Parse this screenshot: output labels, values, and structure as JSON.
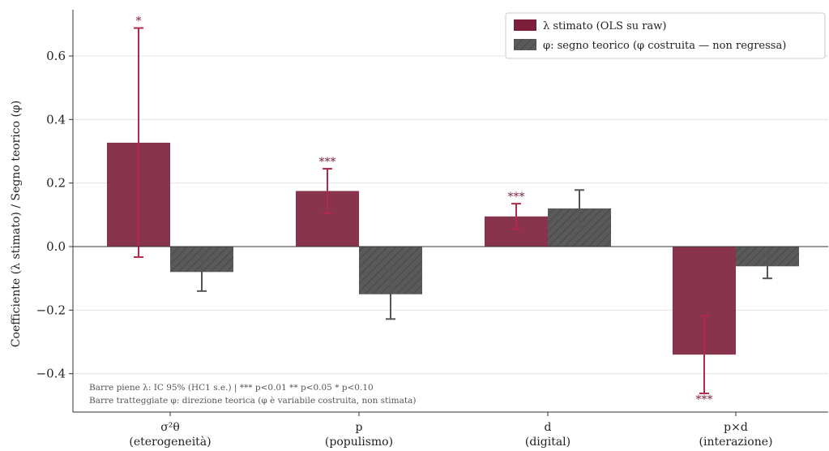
{
  "chart_data": {
    "type": "bar",
    "title": "",
    "ylabel": "Coefficiente (λ stimato) / Segno teorico (φ)",
    "xlabel": "",
    "ylim": [
      -0.5,
      0.75
    ],
    "yticks": [
      0.6,
      0.4,
      0.2,
      0.0,
      -0.2,
      -0.4
    ],
    "ytick_labels": [
      "0.6",
      "0.4",
      "0.2",
      "0.0",
      "−0.2",
      "−0.4"
    ],
    "grid": "horizontal",
    "legend_position": "top-right",
    "categories": [
      {
        "line1": "σ²θ",
        "line2": "(eterogeneità)"
      },
      {
        "line1": "p",
        "line2": "(populismo)"
      },
      {
        "line1": "d",
        "line2": "(digital)"
      },
      {
        "line1": "p×d",
        "line2": "(interazione)"
      }
    ],
    "series": [
      {
        "name": "λ stimato (OLS su raw)",
        "color": "#7b1e3a",
        "style": "solid",
        "values": [
          0.327,
          0.175,
          0.095,
          -0.34
        ],
        "err_low": [
          -0.033,
          0.105,
          0.055,
          -0.462
        ],
        "err_high": [
          0.688,
          0.245,
          0.135,
          -0.218
        ],
        "significance": [
          "*",
          "***",
          "***",
          "***"
        ]
      },
      {
        "name": "φ: segno teorico (φ costruita — non regressa)",
        "color": "#5a5a5a",
        "style": "hatched",
        "values": [
          -0.08,
          -0.15,
          0.12,
          -0.062
        ],
        "err_low": [
          -0.14,
          -0.228,
          0.062,
          -0.1
        ],
        "err_high": [
          -0.025,
          -0.073,
          0.178,
          -0.024
        ],
        "significance": [
          "",
          "",
          "",
          ""
        ]
      }
    ],
    "notes": [
      "Barre piene λ: IC 95% (HC1 s.e.)  |  *** p<0.01  ** p<0.05  * p<0.10",
      "Barre tratteggiate φ: direzione teorica (φ è variabile costruita, non stimata)"
    ]
  }
}
